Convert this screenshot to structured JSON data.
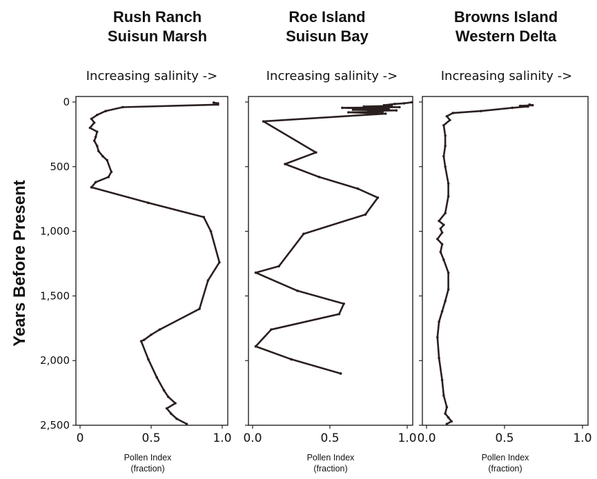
{
  "figure": {
    "ylabel": "Years Before Present",
    "colors": {
      "line": "#2a1f1f",
      "frame": "#222222",
      "text": "#111111"
    }
  },
  "chart_data": [
    {
      "type": "line",
      "title": "Rush Ranch\nSuisun Marsh",
      "title_lines": [
        "Rush Ranch",
        "Suisun Marsh"
      ],
      "subtitle": "Increasing salinity ->",
      "xlabel_lines": [
        "Pollen Index",
        "(fraction)"
      ],
      "ylabel": "Years Before Present",
      "xlim": [
        0,
        1.0
      ],
      "ylim": [
        2500,
        0
      ],
      "y_ticks": [
        0,
        500,
        1000,
        1500,
        2000,
        2500
      ],
      "y_tick_labels": [
        "0",
        "500",
        "1,000",
        "1,500",
        "2,000",
        "2,500"
      ],
      "x_ticks": [
        0,
        0.5,
        1.0
      ],
      "x_tick_labels": [
        "0",
        "0.5",
        "1.0"
      ],
      "series": [
        {
          "x": [
            0.94,
            0.97,
            0.97,
            0.3,
            0.18,
            0.12,
            0.08,
            0.1,
            0.07,
            0.12,
            0.11,
            0.1,
            0.12,
            0.13,
            0.16,
            0.19,
            0.22,
            0.2,
            0.11,
            0.08,
            0.48,
            0.87,
            0.92,
            0.98,
            0.9,
            0.84,
            0.56,
            0.5,
            0.45,
            0.43,
            0.48,
            0.54,
            0.59,
            0.62,
            0.67,
            0.61,
            0.64,
            0.68,
            0.75
          ],
          "y": [
            5,
            10,
            20,
            40,
            70,
            100,
            130,
            160,
            200,
            230,
            270,
            300,
            340,
            380,
            420,
            450,
            540,
            580,
            620,
            660,
            780,
            890,
            1000,
            1240,
            1380,
            1600,
            1760,
            1800,
            1840,
            1850,
            1990,
            2130,
            2230,
            2280,
            2330,
            2370,
            2410,
            2450,
            2490
          ]
        }
      ]
    },
    {
      "type": "line",
      "title": "Roe Island\nSuisun Bay",
      "title_lines": [
        "Roe Island",
        "Suisun Bay"
      ],
      "subtitle": "Increasing salinity ->",
      "xlabel_lines": [
        "Pollen Index",
        "(fraction)"
      ],
      "ylabel": "Years Before Present",
      "xlim": [
        0,
        1.0
      ],
      "ylim": [
        2500,
        0
      ],
      "y_ticks": [
        0,
        500,
        1000,
        1500,
        2000,
        2500
      ],
      "y_tick_labels": [
        "0",
        "500",
        "1,000",
        "1,500",
        "2,000",
        "2,500"
      ],
      "x_ticks": [
        0,
        0.5,
        1.0
      ],
      "x_tick_labels": [
        "0.0",
        "0.5",
        "1.0"
      ],
      "series": [
        {
          "x": [
            1.03,
            0.98,
            0.92,
            0.85,
            0.9,
            0.72,
            0.95,
            0.58,
            0.88,
            0.65,
            0.93,
            0.75,
            0.84,
            0.62,
            0.86,
            0.07,
            0.41,
            0.21,
            0.43,
            0.68,
            0.81,
            0.73,
            0.33,
            0.17,
            0.02,
            0.29,
            0.59,
            0.56,
            0.12,
            0.02,
            0.25,
            0.57
          ],
          "y": [
            2,
            10,
            15,
            25,
            30,
            35,
            40,
            45,
            55,
            60,
            65,
            70,
            75,
            80,
            90,
            150,
            390,
            480,
            580,
            670,
            740,
            870,
            1020,
            1270,
            1320,
            1460,
            1560,
            1640,
            1760,
            1890,
            1990,
            2100
          ]
        }
      ]
    },
    {
      "type": "line",
      "title": "Browns Island\nWestern Delta",
      "title_lines": [
        "Browns Island",
        "Western Delta"
      ],
      "subtitle": "Increasing salinity ->",
      "xlabel_lines": [
        "Pollen Index",
        "(fraction)"
      ],
      "ylabel": "Years Before Present",
      "xlim": [
        0,
        1.0
      ],
      "ylim": [
        2500,
        0
      ],
      "y_ticks": [
        0,
        500,
        1000,
        1500,
        2000,
        2500
      ],
      "y_tick_labels": [
        "0",
        "500",
        "1,000",
        "1,500",
        "2,000",
        "2,500"
      ],
      "x_ticks": [
        0,
        0.5,
        1.0
      ],
      "x_tick_labels": [
        "0.0",
        "0.5",
        "1.0"
      ],
      "series": [
        {
          "x": [
            0.66,
            0.68,
            0.6,
            0.65,
            0.55,
            0.35,
            0.17,
            0.13,
            0.15,
            0.11,
            0.12,
            0.12,
            0.11,
            0.12,
            0.14,
            0.14,
            0.12,
            0.08,
            0.11,
            0.09,
            0.1,
            0.07,
            0.1,
            0.09,
            0.11,
            0.14,
            0.14,
            0.12,
            0.1,
            0.08,
            0.07,
            0.08,
            0.1,
            0.11,
            0.13,
            0.12,
            0.14,
            0.16,
            0.13
          ],
          "y": [
            20,
            25,
            30,
            35,
            45,
            70,
            85,
            110,
            140,
            180,
            260,
            340,
            420,
            500,
            630,
            730,
            860,
            920,
            950,
            980,
            1010,
            1060,
            1100,
            1160,
            1220,
            1320,
            1450,
            1540,
            1620,
            1700,
            1820,
            1980,
            2150,
            2270,
            2360,
            2410,
            2440,
            2470,
            2490
          ]
        }
      ]
    }
  ]
}
